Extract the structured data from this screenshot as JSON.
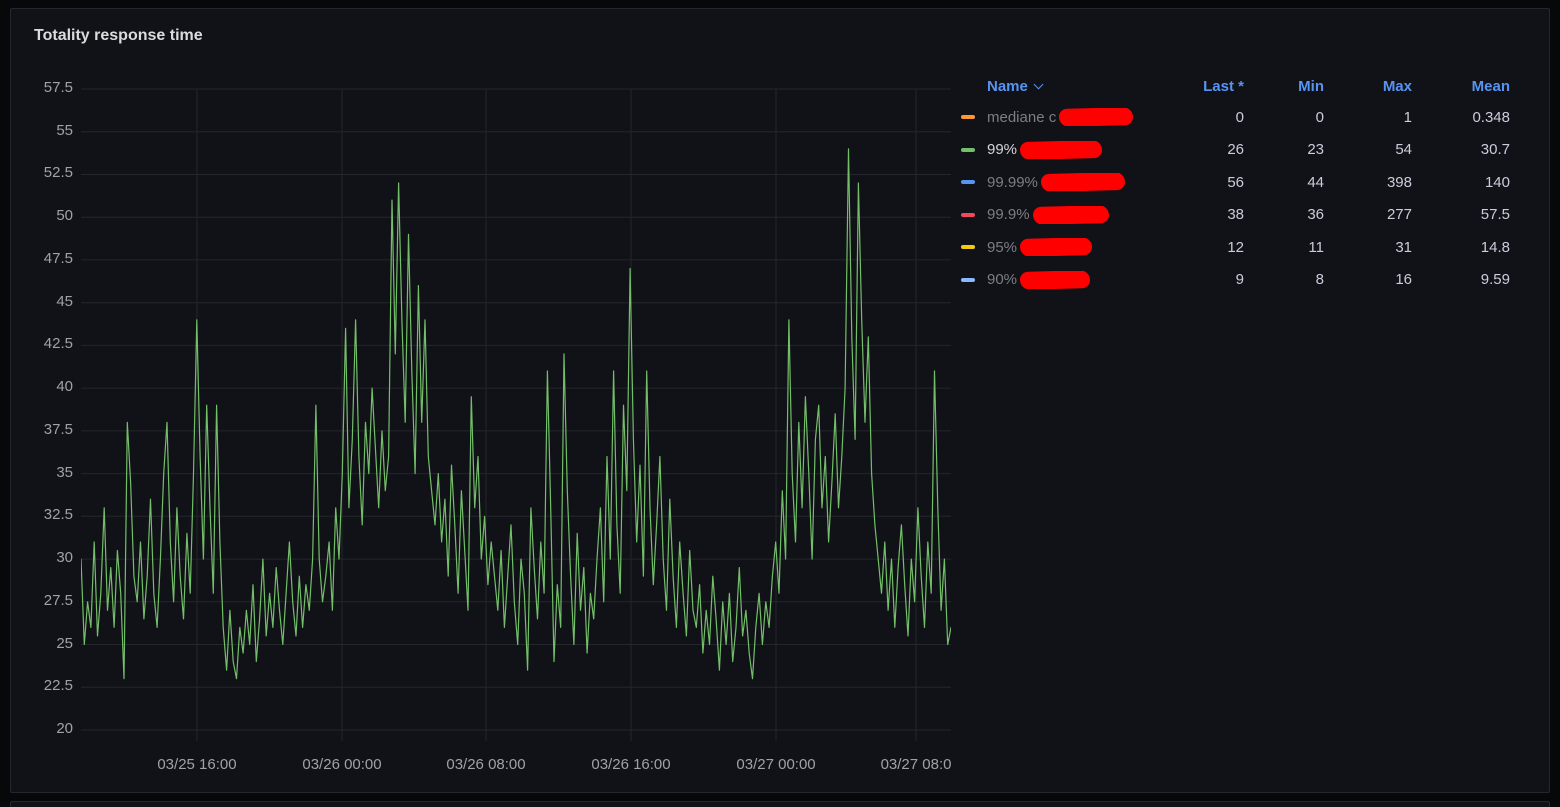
{
  "panel": {
    "title": "Totality response time"
  },
  "chart_data": {
    "type": "line",
    "title": "Totality response time",
    "grid": true,
    "legend_position": "right-table",
    "ylim": [
      20,
      57.5
    ],
    "y_ticks": [
      "57.5",
      "55",
      "52.5",
      "50",
      "47.5",
      "45",
      "42.5",
      "40",
      "37.5",
      "35",
      "32.5",
      "30",
      "27.5",
      "25",
      "22.5",
      "20"
    ],
    "x_tick_labels": [
      "03/25 16:00",
      "03/26 00:00",
      "03/26 08:00",
      "03/26 16:00",
      "03/27 00:00",
      "03/27 08:0"
    ],
    "series": [
      {
        "name": "99%",
        "color": "#73BF69",
        "values": [
          30,
          25,
          27.5,
          26,
          31,
          25.5,
          28,
          33,
          27,
          29.5,
          26,
          30.5,
          28,
          23,
          38,
          34.5,
          29,
          27.5,
          31,
          26.5,
          29,
          33.5,
          28,
          26,
          30,
          35,
          38,
          31,
          27.5,
          33,
          29,
          26.5,
          31.5,
          28,
          35,
          44,
          36,
          30,
          39,
          33,
          28,
          39,
          31,
          26,
          23.5,
          27,
          24,
          23,
          26,
          24.5,
          27,
          25,
          28.5,
          24,
          26.5,
          30,
          25.5,
          28,
          26,
          29.5,
          27,
          25,
          28,
          31,
          27.5,
          25.5,
          29,
          26,
          28.5,
          27,
          30,
          39,
          30,
          27.5,
          29,
          31,
          27,
          33,
          30,
          35,
          43.5,
          33,
          37,
          44,
          36,
          32,
          38,
          35,
          40,
          36.5,
          33,
          37.5,
          34,
          36,
          51,
          42,
          52,
          44,
          38,
          49,
          41,
          35,
          46,
          38,
          44,
          36,
          34,
          32,
          35,
          31,
          33.5,
          29,
          35.5,
          32,
          28,
          34,
          30.5,
          27,
          39.5,
          33,
          36,
          30,
          32.5,
          28.5,
          31,
          29,
          27,
          30.5,
          26,
          29,
          32,
          27.5,
          25,
          30,
          28,
          23.5,
          33,
          29.5,
          26.5,
          31,
          28,
          41,
          33,
          24,
          28.5,
          26,
          42,
          34,
          29,
          25,
          31.5,
          27,
          29.5,
          24.5,
          28,
          26.5,
          30,
          33,
          27.5,
          36,
          30,
          41,
          32,
          28,
          39,
          34,
          47,
          37,
          31,
          35.5,
          29,
          41,
          33,
          28.5,
          32,
          36,
          30,
          27,
          33.5,
          29,
          26,
          31,
          28,
          25.5,
          30.5,
          27,
          26,
          28.5,
          24.5,
          27,
          25,
          29,
          26.5,
          23.5,
          27.5,
          25,
          28,
          24,
          26,
          29.5,
          25.5,
          27,
          24.5,
          23,
          26,
          28,
          25,
          27.5,
          26,
          29,
          31,
          28,
          34,
          30,
          44,
          35,
          31,
          38,
          33,
          39.5,
          35,
          30,
          37,
          39,
          33,
          36,
          31,
          34.5,
          38.5,
          33,
          36,
          40,
          54,
          43,
          37,
          52,
          44,
          38,
          43,
          35,
          32,
          30,
          28,
          31,
          27,
          30,
          26,
          29.5,
          32,
          28.5,
          25.5,
          30,
          27.5,
          33,
          29,
          26,
          31,
          28,
          41,
          33,
          27,
          30,
          25,
          26
        ]
      }
    ]
  },
  "legend": {
    "headers": {
      "name": "Name",
      "sort_caret_icon": "chevron-down",
      "last": "Last *",
      "min": "Min",
      "max": "Max",
      "mean": "Mean"
    },
    "redaction_color": "#ff0000",
    "rows": [
      {
        "label": "mediane c",
        "redacted": true,
        "color": "#FF9830",
        "dimmed": true,
        "last": "0",
        "min": "0",
        "max": "1",
        "mean": "0.348"
      },
      {
        "label": "99%",
        "redacted": true,
        "color": "#73BF69",
        "dimmed": false,
        "last": "26",
        "min": "23",
        "max": "54",
        "mean": "30.7"
      },
      {
        "label": "99.99%",
        "redacted": true,
        "color": "#5794F2",
        "dimmed": true,
        "last": "56",
        "min": "44",
        "max": "398",
        "mean": "140"
      },
      {
        "label": "99.9%",
        "redacted": true,
        "color": "#F2495C",
        "dimmed": true,
        "last": "38",
        "min": "36",
        "max": "277",
        "mean": "57.5"
      },
      {
        "label": "95%",
        "redacted": true,
        "color": "#F2CC0C",
        "dimmed": true,
        "last": "12",
        "min": "11",
        "max": "31",
        "mean": "14.8"
      },
      {
        "label": "90%",
        "redacted": true,
        "color": "#8AB8FF",
        "dimmed": true,
        "last": "9",
        "min": "8",
        "max": "16",
        "mean": "9.59"
      }
    ]
  }
}
